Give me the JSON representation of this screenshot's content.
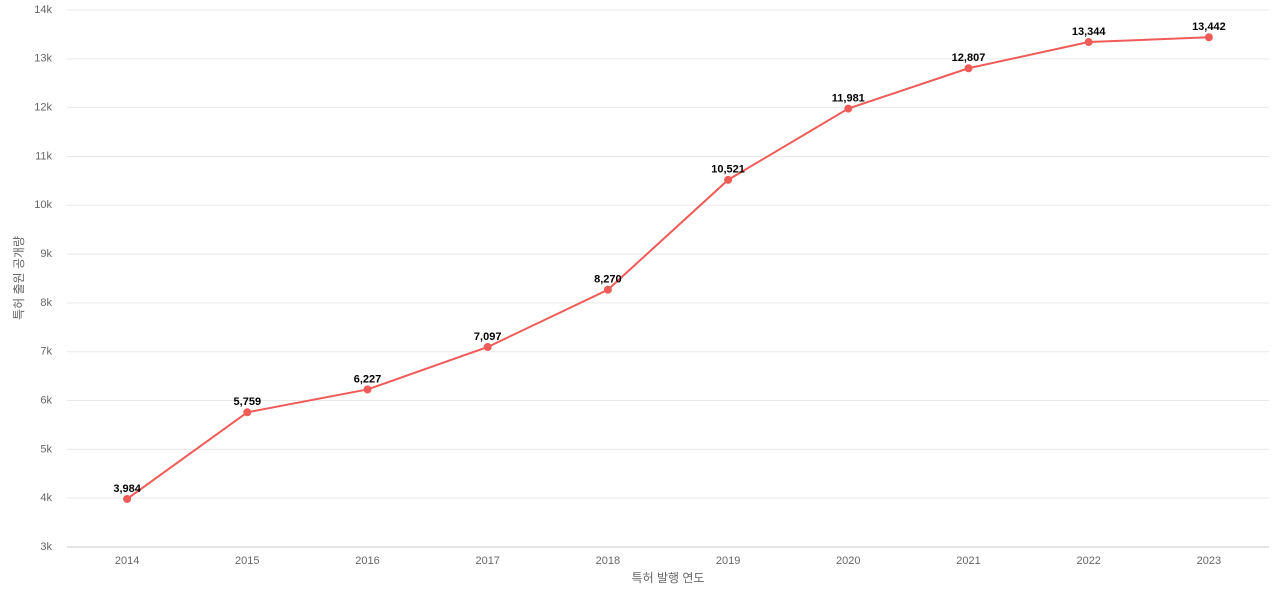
{
  "chart_data": {
    "type": "line",
    "y_label": "특허 출원 공개량",
    "x_label": "특허 발행 연도",
    "categories": [
      "2014",
      "2015",
      "2016",
      "2017",
      "2018",
      "2019",
      "2020",
      "2021",
      "2022",
      "2023"
    ],
    "series": [
      {
        "color": "#ef5b57",
        "values": [
          3984,
          5759,
          6227,
          7097,
          8270,
          10521,
          11981,
          12807,
          13344,
          13442
        ],
        "value_labels": [
          "3,984",
          "5,759",
          "6,227",
          "7,097",
          "8,270",
          "10,521",
          "11,981",
          "12,807",
          "13,344",
          "13,442"
        ]
      }
    ],
    "ylim": [
      3000,
      14000
    ],
    "yticks": [
      {
        "value": 3000,
        "label": "3k"
      },
      {
        "value": 4000,
        "label": "4k"
      },
      {
        "value": 5000,
        "label": "5k"
      },
      {
        "value": 6000,
        "label": "6k"
      },
      {
        "value": 7000,
        "label": "7k"
      },
      {
        "value": 8000,
        "label": "8k"
      },
      {
        "value": 9000,
        "label": "9k"
      },
      {
        "value": 10000,
        "label": "10k"
      },
      {
        "value": 11000,
        "label": "11k"
      },
      {
        "value": 12000,
        "label": "12k"
      },
      {
        "value": 13000,
        "label": "13k"
      },
      {
        "value": 14000,
        "label": "14k"
      }
    ],
    "grid": true
  }
}
